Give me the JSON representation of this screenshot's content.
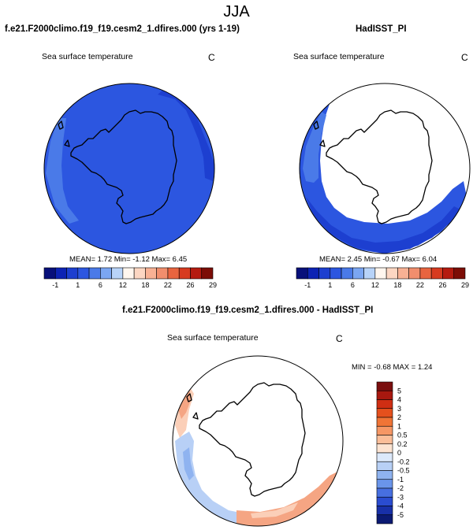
{
  "season": "JJA",
  "panels": [
    {
      "case": "f.e21.F2000climo.f19_f19.cesm2_1.dfires.000 (yrs 1-19)",
      "variable": "Sea surface temperature",
      "units": "C",
      "stats": "MEAN=  1.72  Min=  -1.12  Max=  6.45"
    },
    {
      "case": "HadISST_PI",
      "variable": "Sea surface temperature",
      "units": "C",
      "stats": "MEAN=  2.45  Min=  -0.67  Max=  6.04"
    }
  ],
  "difference": {
    "case": "f.e21.F2000climo.f19_f19.cesm2_1.dfires.000 - HadISST_PI",
    "variable": "Sea surface temperature",
    "units": "C",
    "stats": "MIN =  -0.68  MAX =  1.24"
  },
  "colorbar_abs": {
    "colors": [
      "#08107a",
      "#0d23b4",
      "#1d3fd0",
      "#2c56e0",
      "#4a7ae8",
      "#7ba6f2",
      "#b8d3f8",
      "#fff6ee",
      "#fcd6c2",
      "#f8b194",
      "#f18e6d",
      "#e8643f",
      "#d73b20",
      "#b51b10",
      "#7c0d06"
    ],
    "labels": [
      "-1",
      "1",
      "6",
      "12",
      "18",
      "22",
      "26",
      "29"
    ]
  },
  "colorbar_diff": {
    "colors": [
      "#7a0e0e",
      "#a8180f",
      "#cf2e13",
      "#e5501d",
      "#f07436",
      "#f69765",
      "#fbbe99",
      "#fde4d2",
      "#dce9fb",
      "#b8d0f6",
      "#8fb3f0",
      "#6a95ea",
      "#476fe0",
      "#2a4cd0",
      "#1830a8",
      "#0b1a73"
    ],
    "labels": [
      "5",
      "4",
      "3",
      "2",
      "1",
      "0.5",
      "0.2",
      "0",
      "-0.2",
      "-0.5",
      "-1",
      "-2",
      "-3",
      "-4",
      "-5"
    ]
  },
  "map_colors": {
    "model_sst": "#2c56e0",
    "model_sst_cold": "#1d3fd0",
    "model_sst_warm": "#4a7ae8",
    "obs_sst": "#2c56e0",
    "obs_sst_cold": "#1d3fd0",
    "obs_sst_warm": "#4a7ae8",
    "diff_warm": "#f5a583",
    "diff_warm_light": "#fbcfb8",
    "diff_cool": "#b8d0f6",
    "diff_cool_dark": "#8fb3f0"
  }
}
